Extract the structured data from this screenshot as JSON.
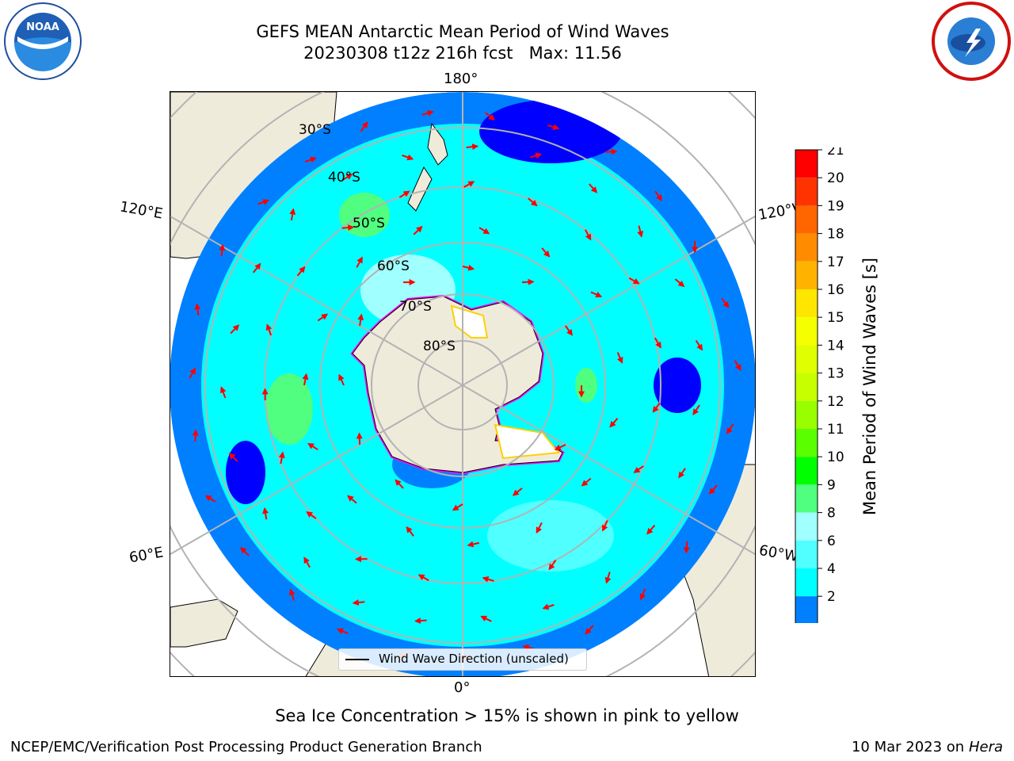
{
  "header": {
    "title_line1": "GEFS MEAN Antarctic Mean Period of Wind Waves",
    "title_line2": "20230308 t12z 216h fcst   Max: 11.56"
  },
  "map": {
    "longitude_labels": {
      "top": "180°",
      "bottom": "0°",
      "left_upper": "120°E",
      "left_lower": "60°E",
      "right_upper": "120°W",
      "right_lower": "60°W"
    },
    "latitude_labels": [
      "30°S",
      "40°S",
      "50°S",
      "60°S",
      "70°S",
      "80°S"
    ],
    "colors": {
      "land": "#efebdb",
      "ocean_low": "#0080ff",
      "ocean_mid": "#00ffff",
      "ocean_high": "#50ff80",
      "grid": "#b3b3b3",
      "arrows": "#ff0000",
      "ice_edge": "#ff00ff"
    }
  },
  "legend": {
    "label": "Wind Wave Direction (unscaled)"
  },
  "colorbar": {
    "title": "Mean Period of Wind Waves [s]",
    "ticks": [
      "21",
      "20",
      "19",
      "18",
      "17",
      "16",
      "15",
      "14",
      "13",
      "12",
      "11",
      "10",
      "9",
      "8",
      "6",
      "4",
      "2"
    ],
    "colors": [
      "#ff0000",
      "#ff3300",
      "#ff6600",
      "#ff8c00",
      "#ffb300",
      "#ffe600",
      "#f5ff00",
      "#e0ff00",
      "#c8ff00",
      "#99ff00",
      "#5aff00",
      "#00ff00",
      "#50ff80",
      "#a0ffff",
      "#50ffff",
      "#00ffff",
      "#0080ff"
    ],
    "extend_color": "#0000ff"
  },
  "note": "Sea Ice Concentration > 15% is shown in pink to yellow",
  "footer": {
    "left": "NCEP/EMC/Verification Post Processing Product Generation Branch",
    "date": "10 Mar 2023 on",
    "machine": "Hera"
  }
}
